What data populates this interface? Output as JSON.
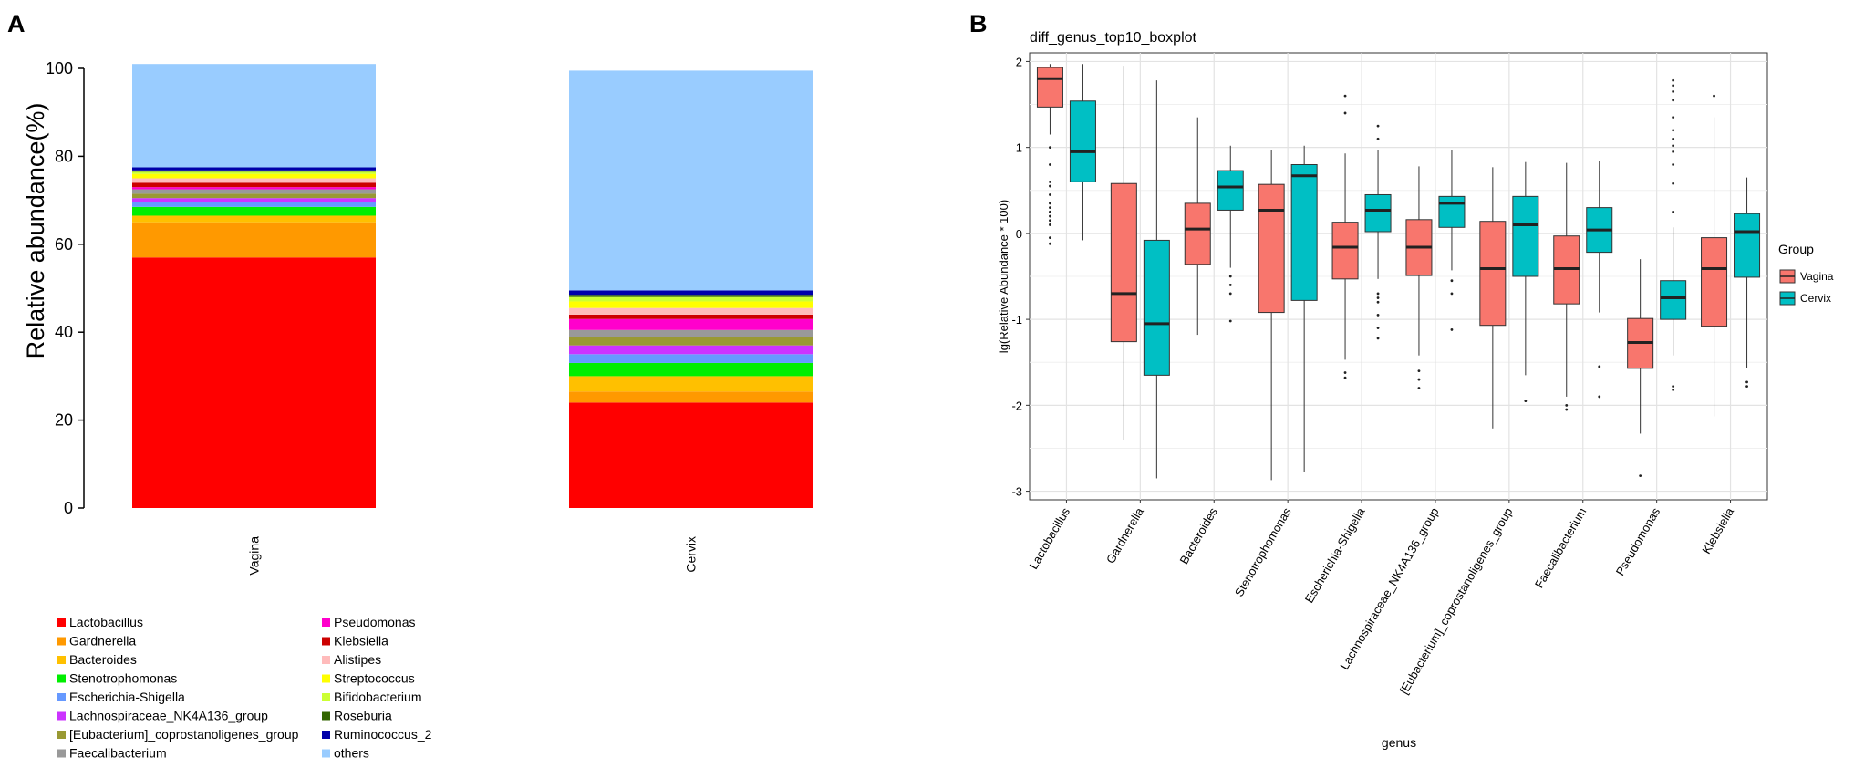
{
  "panel_labels": {
    "a": "A",
    "b": "B"
  },
  "chart_data": [
    {
      "type": "bar",
      "stacked": true,
      "title": "",
      "xlabel": "",
      "ylabel": "Relative abundance(%)",
      "ylim": [
        0,
        100
      ],
      "yticks": [
        0,
        20,
        40,
        60,
        80,
        100
      ],
      "categories": [
        "Vagina",
        "Cervix"
      ],
      "series": [
        {
          "name": "Lactobacillus",
          "color": "#ff0000",
          "values": [
            57.0,
            24.0
          ]
        },
        {
          "name": "Gardnerella",
          "color": "#ff9900",
          "values": [
            8.0,
            2.5
          ]
        },
        {
          "name": "Bacteroides",
          "color": "#ffc000",
          "values": [
            1.5,
            3.5
          ]
        },
        {
          "name": "Stenotrophomonas",
          "color": "#00ee00",
          "values": [
            2.0,
            3.0
          ]
        },
        {
          "name": "Escherichia-Shigella",
          "color": "#6699ff",
          "values": [
            1.0,
            2.0
          ]
        },
        {
          "name": "Lachnospiraceae_NK4A136_group",
          "color": "#cc33ff",
          "values": [
            1.0,
            2.0
          ]
        },
        {
          "name": "[Eubacterium]_coprostanoligenes_group",
          "color": "#999933",
          "values": [
            1.0,
            2.0
          ]
        },
        {
          "name": "Faecalibacterium",
          "color": "#999999",
          "values": [
            1.0,
            1.5
          ]
        },
        {
          "name": "Pseudomonas",
          "color": "#ff00cc",
          "values": [
            0.5,
            2.5
          ]
        },
        {
          "name": "Klebsiella",
          "color": "#cc0000",
          "values": [
            1.0,
            1.0
          ]
        },
        {
          "name": "Alistipes",
          "color": "#ffbbbb",
          "values": [
            1.0,
            1.5
          ]
        },
        {
          "name": "Streptococcus",
          "color": "#ffff00",
          "values": [
            1.0,
            1.5
          ]
        },
        {
          "name": "Bifidobacterium",
          "color": "#ccff33",
          "values": [
            0.5,
            1.0
          ]
        },
        {
          "name": "Roseburia",
          "color": "#336600",
          "values": [
            0.3,
            0.5
          ]
        },
        {
          "name": "Ruminococcus_2",
          "color": "#0000aa",
          "values": [
            0.7,
            1.0
          ]
        },
        {
          "name": "others",
          "color": "#99ccff",
          "values": [
            23.5,
            50.0
          ]
        }
      ]
    },
    {
      "type": "box",
      "title": "diff_genus_top10_boxplot",
      "xlabel": "genus",
      "ylabel": "lg(Relative Abundance * 100)",
      "ylim": [
        -3.1,
        2.1
      ],
      "yticks": [
        -3,
        -2,
        -1,
        0,
        1,
        2
      ],
      "legend": {
        "title": "Group",
        "position": "right"
      },
      "groups": [
        {
          "name": "Vagina",
          "color": "#f8766d"
        },
        {
          "name": "Cervix",
          "color": "#00bfc4"
        }
      ],
      "categories": [
        "Lactobacillus",
        "Gardnerella",
        "Bacteroides",
        "Stenotrophomonas",
        "Escherichia-Shigella",
        "Lachnospiraceae_NK4A136_group",
        "[Eubacterium]_coprostanoligenes_group",
        "Faecalibacterium",
        "Pseudomonas",
        "Klebsiella"
      ],
      "boxes": [
        {
          "genus": "Lactobacillus",
          "group": "Vagina",
          "min": 1.15,
          "q1": 1.47,
          "median": 1.8,
          "q3": 1.93,
          "max": 1.97,
          "outliers": [
            1.0,
            0.8,
            0.6,
            0.55,
            0.45,
            0.35,
            0.3,
            0.25,
            0.2,
            0.15,
            0.1,
            -0.05,
            -0.12
          ]
        },
        {
          "genus": "Lactobacillus",
          "group": "Cervix",
          "min": -0.08,
          "q1": 0.6,
          "median": 0.95,
          "q3": 1.54,
          "max": 1.97,
          "outliers": []
        },
        {
          "genus": "Gardnerella",
          "group": "Vagina",
          "min": -2.4,
          "q1": -1.26,
          "median": -0.7,
          "q3": 0.58,
          "max": 1.95,
          "outliers": []
        },
        {
          "genus": "Gardnerella",
          "group": "Cervix",
          "min": -2.85,
          "q1": -1.65,
          "median": -1.05,
          "q3": -0.08,
          "max": 1.78,
          "outliers": []
        },
        {
          "genus": "Bacteroides",
          "group": "Vagina",
          "min": -1.18,
          "q1": -0.36,
          "median": 0.05,
          "q3": 0.35,
          "max": 1.35,
          "outliers": []
        },
        {
          "genus": "Bacteroides",
          "group": "Cervix",
          "min": -0.4,
          "q1": 0.27,
          "median": 0.54,
          "q3": 0.73,
          "max": 1.02,
          "outliers": [
            -0.5,
            -0.6,
            -0.7,
            -1.02
          ]
        },
        {
          "genus": "Stenotrophomonas",
          "group": "Vagina",
          "min": -2.87,
          "q1": -0.92,
          "median": 0.27,
          "q3": 0.57,
          "max": 0.97,
          "outliers": []
        },
        {
          "genus": "Stenotrophomonas",
          "group": "Cervix",
          "min": -2.78,
          "q1": -0.78,
          "median": 0.67,
          "q3": 0.8,
          "max": 1.02,
          "outliers": []
        },
        {
          "genus": "Escherichia-Shigella",
          "group": "Vagina",
          "min": -1.47,
          "q1": -0.53,
          "median": -0.16,
          "q3": 0.13,
          "max": 0.93,
          "outliers": [
            1.6,
            1.4,
            -1.62,
            -1.68
          ]
        },
        {
          "genus": "Escherichia-Shigella",
          "group": "Cervix",
          "min": -0.53,
          "q1": 0.02,
          "median": 0.27,
          "q3": 0.45,
          "max": 0.97,
          "outliers": [
            1.25,
            1.1,
            -0.7,
            -0.75,
            -0.8,
            -0.95,
            -1.1,
            -1.22
          ]
        },
        {
          "genus": "Lachnospiraceae_NK4A136_group",
          "group": "Vagina",
          "min": -1.42,
          "q1": -0.49,
          "median": -0.16,
          "q3": 0.16,
          "max": 0.78,
          "outliers": [
            -1.6,
            -1.7,
            -1.8
          ]
        },
        {
          "genus": "Lachnospiraceae_NK4A136_group",
          "group": "Cervix",
          "min": -0.43,
          "q1": 0.07,
          "median": 0.35,
          "q3": 0.43,
          "max": 0.97,
          "outliers": [
            -0.55,
            -0.7,
            -1.12
          ]
        },
        {
          "genus": "[Eubacterium]_coprostanoligenes_group",
          "group": "Vagina",
          "min": -2.27,
          "q1": -1.07,
          "median": -0.41,
          "q3": 0.14,
          "max": 0.77,
          "outliers": []
        },
        {
          "genus": "[Eubacterium]_coprostanoligenes_group",
          "group": "Cervix",
          "min": -1.65,
          "q1": -0.5,
          "median": 0.1,
          "q3": 0.43,
          "max": 0.83,
          "outliers": [
            -1.95
          ]
        },
        {
          "genus": "Faecalibacterium",
          "group": "Vagina",
          "min": -1.9,
          "q1": -0.82,
          "median": -0.41,
          "q3": -0.03,
          "max": 0.82,
          "outliers": [
            -2.0,
            -2.05
          ]
        },
        {
          "genus": "Faecalibacterium",
          "group": "Cervix",
          "min": -0.92,
          "q1": -0.22,
          "median": 0.04,
          "q3": 0.3,
          "max": 0.84,
          "outliers": [
            -1.55,
            -1.9
          ]
        },
        {
          "genus": "Pseudomonas",
          "group": "Vagina",
          "min": -2.33,
          "q1": -1.57,
          "median": -1.27,
          "q3": -0.99,
          "max": -0.3,
          "outliers": [
            -2.82
          ]
        },
        {
          "genus": "Pseudomonas",
          "group": "Cervix",
          "min": -1.42,
          "q1": -1.0,
          "median": -0.75,
          "q3": -0.55,
          "max": 0.07,
          "outliers": [
            1.78,
            1.72,
            1.65,
            1.55,
            1.35,
            1.2,
            1.1,
            1.02,
            0.95,
            0.8,
            0.58,
            0.25,
            -1.78,
            -1.82
          ]
        },
        {
          "genus": "Klebsiella",
          "group": "Vagina",
          "min": -2.13,
          "q1": -1.08,
          "median": -0.41,
          "q3": -0.05,
          "max": 1.35,
          "outliers": [
            1.6
          ]
        },
        {
          "genus": "Klebsiella",
          "group": "Cervix",
          "min": -1.57,
          "q1": -0.51,
          "median": 0.02,
          "q3": 0.23,
          "max": 0.65,
          "outliers": [
            -1.73,
            -1.78
          ]
        }
      ]
    }
  ]
}
